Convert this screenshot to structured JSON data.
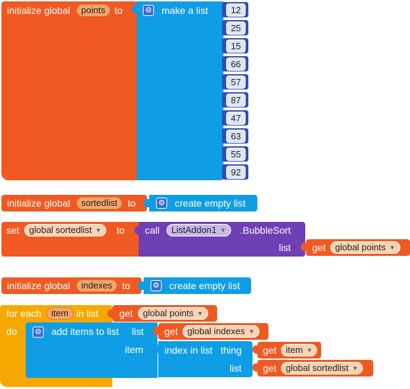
{
  "points_block": {
    "initialize_label": "initialize global",
    "var_name": "points",
    "to_label": "to",
    "make_list_label": "make a list",
    "values": [
      "12",
      "25",
      "15",
      "66",
      "57",
      "87",
      "47",
      "63",
      "55",
      "92"
    ]
  },
  "sortedlist_block": {
    "initialize_label": "initialize global",
    "var_name": "sortedlist",
    "to_label": "to",
    "create_label": "create empty list"
  },
  "set_block": {
    "set_label": "set",
    "var_dropdown": "global sortedlist",
    "to_label": "to",
    "call_label": "call",
    "component_dropdown": "ListAddon1",
    "method_label": ".BubbleSort",
    "list_label": "list",
    "get_label": "get",
    "get_dropdown": "global points"
  },
  "indexes_block": {
    "initialize_label": "initialize global",
    "var_name": "indexes",
    "to_label": "to",
    "create_label": "create empty list"
  },
  "foreach_block": {
    "for_each_label": "for each",
    "item_var": "item",
    "in_list_label": "in list",
    "get_label": "get",
    "list_dropdown": "global points",
    "do_label": "do",
    "add_items_label": "add items to list",
    "list_label": "list",
    "get_indexes_label": "get",
    "indexes_dropdown": "global indexes",
    "item_label": "item",
    "index_in_list_label": "index in list",
    "thing_label": "thing",
    "get_item_label": "get",
    "item_dropdown": "item",
    "list2_label": "list",
    "get_sorted_label": "get",
    "sorted_dropdown": "global sortedlist"
  },
  "icons": {
    "gear": "gear-icon",
    "dropdown": "chevron-down-icon"
  },
  "colors": {
    "variables": "#f05a22",
    "lists": "#0f9ee6",
    "math": "#2f50b3",
    "component": "#6f3fb5",
    "control": "#f7a800"
  }
}
